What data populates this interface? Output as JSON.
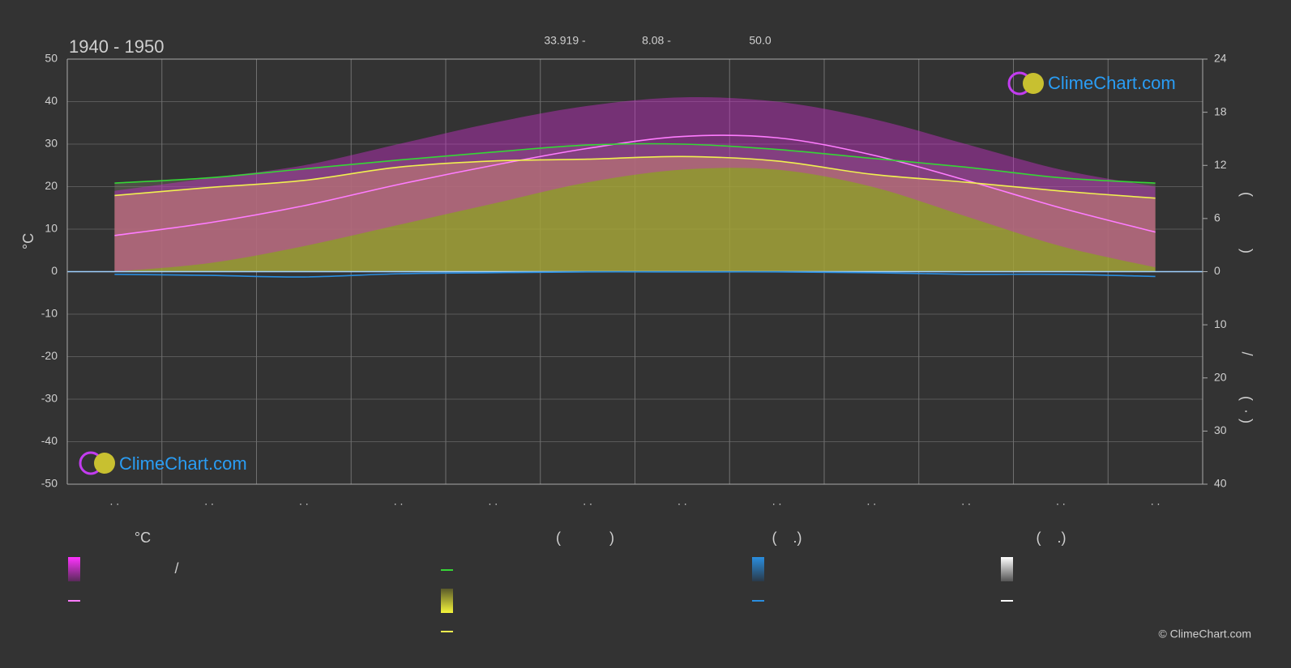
{
  "chart_data": {
    "type": "climate",
    "title": "1940 - 1950",
    "annotations": [
      "33.919 -",
      "8.08 -",
      "50.0"
    ],
    "y_label": "°C",
    "categories": [
      ". .",
      ". .",
      ". .",
      ". .",
      ". .",
      ". .",
      ". .",
      ". .",
      ". .",
      ". .",
      ". .",
      ". ."
    ],
    "ylim": [
      -50,
      50
    ],
    "yticks": [
      -50,
      -40,
      -30,
      -20,
      -10,
      0,
      10,
      20,
      30,
      40,
      50
    ],
    "sunshine_axis": {
      "lim": [
        0,
        24
      ],
      "ticks": [
        0,
        6,
        12,
        18,
        24
      ],
      "labels": [
        "(",
        ")"
      ]
    },
    "precip_axis": {
      "lim": [
        0,
        40
      ],
      "ticks": [
        10,
        20,
        30,
        40
      ],
      "labels": [
        "/",
        "(",
        "·",
        ")"
      ]
    },
    "grid": true,
    "temp_range": {
      "color": "#c62fc6",
      "max": [
        19,
        22,
        25,
        30,
        35,
        39,
        41,
        40,
        36,
        30,
        24,
        20
      ],
      "min": [
        0,
        2,
        6,
        11,
        16,
        21,
        24,
        24,
        20,
        13,
        6,
        1
      ]
    },
    "series": [
      {
        "color": "#ff7cff",
        "axis": "y",
        "values": [
          8.5,
          11.5,
          15.5,
          20.5,
          25,
          29,
          31.8,
          31.5,
          27.5,
          21.5,
          15,
          9.3
        ]
      },
      {
        "color": "#36d636",
        "axis": "sunshine",
        "values": [
          10.0,
          10.6,
          11.6,
          12.6,
          13.5,
          14.3,
          14.4,
          13.8,
          12.8,
          11.8,
          10.6,
          10.0
        ]
      },
      {
        "color": "#f0f050",
        "axis": "sunshine",
        "values": [
          8.6,
          9.5,
          10.3,
          11.8,
          12.5,
          12.7,
          13.0,
          12.5,
          11.0,
          10.1,
          9.1,
          8.3
        ]
      },
      {
        "color": "#2a8ee0",
        "axis": "precip",
        "values": [
          0.5,
          0.7,
          1.0,
          0.4,
          0.2,
          0.05,
          0.05,
          0.05,
          0.2,
          0.5,
          0.5,
          0.9
        ]
      }
    ],
    "legend": {
      "headers": [
        "°C",
        "(            )",
        "(    .)",
        "(    .)"
      ],
      "slash": "/"
    },
    "logo": "ClimeChart.com",
    "copyright": "© ClimeChart.com"
  }
}
